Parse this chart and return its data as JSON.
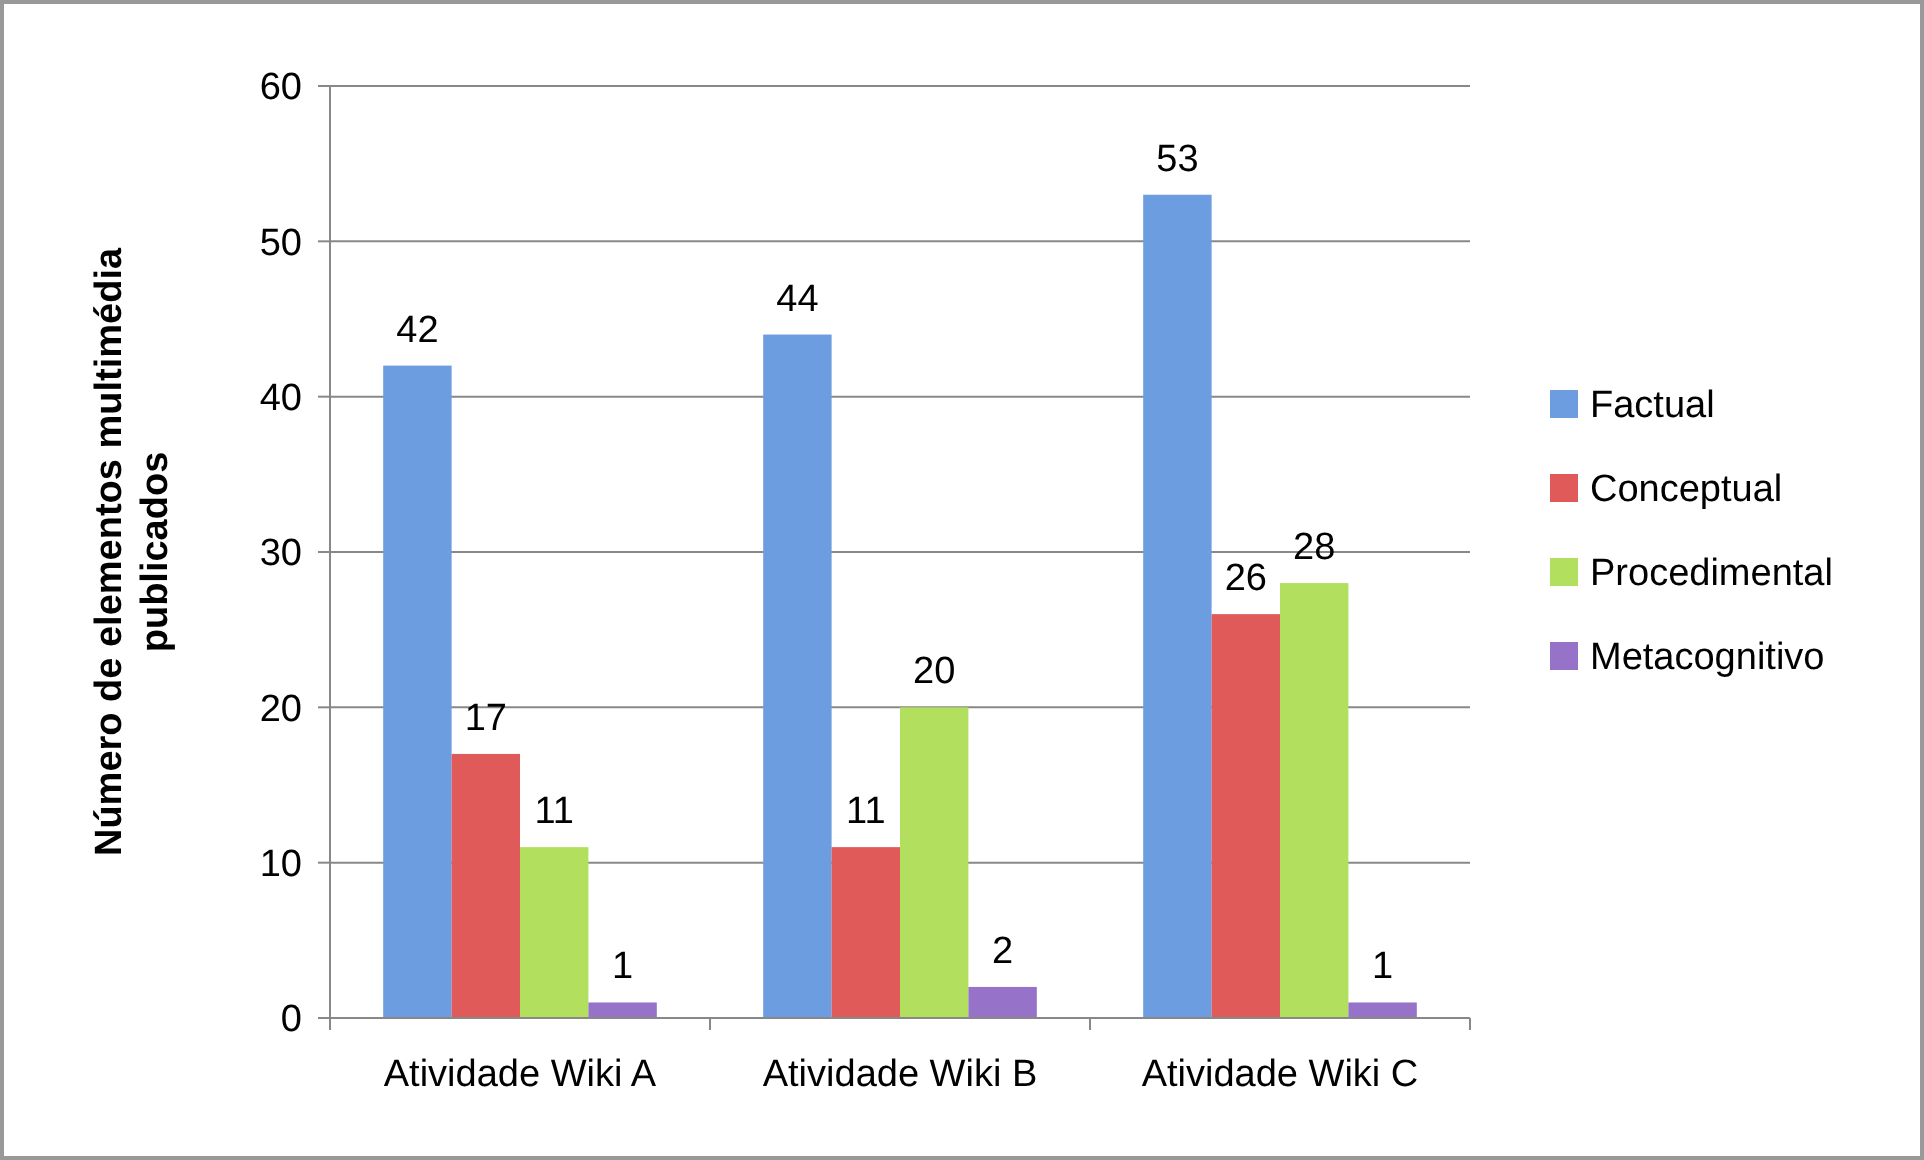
{
  "chart_data": {
    "type": "bar",
    "ylabel": "Número de elementos multimédia publicados",
    "categories": [
      "Atividade Wiki A",
      "Atividade Wiki B",
      "Atividade Wiki C"
    ],
    "series": [
      {
        "name": "Factual",
        "color": "#6b9de0",
        "values": [
          42,
          44,
          53
        ]
      },
      {
        "name": "Conceptual",
        "color": "#e05a5a",
        "values": [
          17,
          11,
          26
        ]
      },
      {
        "name": "Procedimental",
        "color": "#b3df5e",
        "values": [
          11,
          20,
          28
        ]
      },
      {
        "name": "Metacognitivo",
        "color": "#9673c8",
        "values": [
          1,
          2,
          1
        ]
      }
    ],
    "ylim": [
      0,
      60
    ],
    "yticks": [
      0,
      10,
      20,
      30,
      40,
      50,
      60
    ],
    "grid": "y",
    "legend": "right",
    "data_labels": true
  }
}
